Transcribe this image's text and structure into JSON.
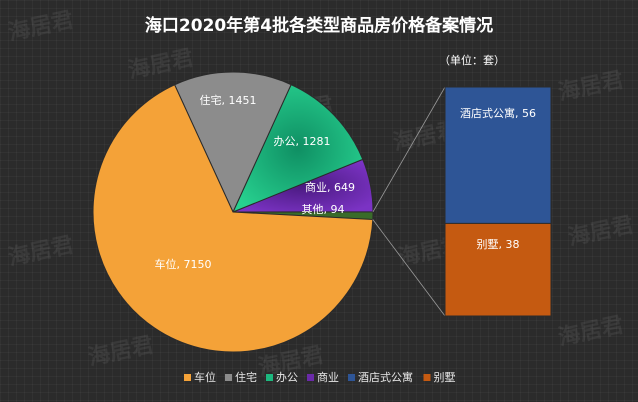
{
  "chart_data": {
    "type": "bar-of-pie",
    "title": "海口2020年第4批各类型商品房价格备案情况",
    "unit_label": "（单位：套）",
    "pie": {
      "slices": [
        {
          "name": "车位",
          "value": 7150,
          "color": "#f4a238",
          "label": "车位, 7150"
        },
        {
          "name": "住宅",
          "value": 1451,
          "color": "#8c8c8c",
          "label": "住宅, 1451"
        },
        {
          "name": "办公",
          "value": 1281,
          "color": "#1db87f",
          "label": "办公, 1281"
        },
        {
          "name": "商业",
          "value": 649,
          "color": "#6a2aa8",
          "label": "商业, 649"
        },
        {
          "name": "其他",
          "value": 94,
          "color": "#3a6b2a",
          "label": "其他, 94"
        }
      ]
    },
    "bar": {
      "segments": [
        {
          "name": "酒店式公寓",
          "value": 56,
          "color": "#2e5596",
          "label": "酒店式公寓, 56"
        },
        {
          "name": "别墅",
          "value": 38,
          "color": "#c55a11",
          "label": "别墅, 38"
        }
      ]
    },
    "legend": {
      "position": "bottom",
      "items": [
        {
          "name": "车位",
          "color": "#f4a238"
        },
        {
          "name": "住宅",
          "color": "#8c8c8c"
        },
        {
          "name": "办公",
          "color": "#1db87f"
        },
        {
          "name": "商业",
          "color": "#6a2aa8"
        },
        {
          "name": "酒店式公寓",
          "color": "#2e5596"
        },
        {
          "name": "别墅",
          "color": "#c55a11"
        }
      ]
    },
    "watermark": "海居君"
  }
}
